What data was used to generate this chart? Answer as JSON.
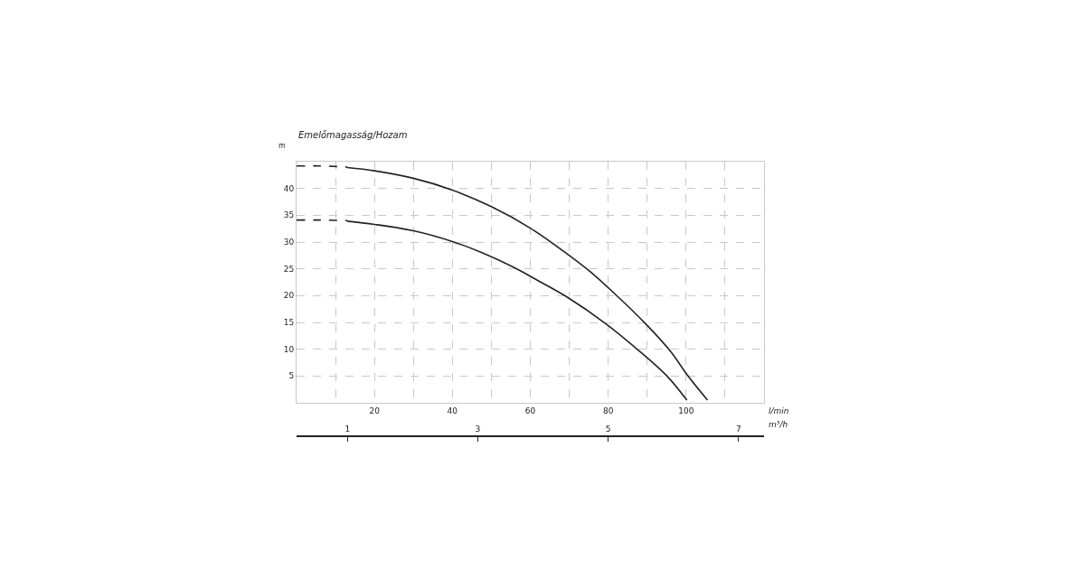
{
  "chart_data": {
    "type": "line",
    "title": "Emelőmagasság/Hozam",
    "ylabel": "m",
    "xlabel": "l/min",
    "x2label": "m³/h",
    "xlim": [
      0,
      120
    ],
    "xticks": [
      {
        "value": 10,
        "label": null
      },
      20,
      {
        "value": 30,
        "label": null
      },
      40,
      {
        "value": 50,
        "label": null
      },
      60,
      {
        "value": 70,
        "label": null
      },
      80,
      {
        "value": 90,
        "label": null
      },
      100,
      {
        "value": 110,
        "label": null
      },
      {
        "value": 120,
        "label": null
      }
    ],
    "ylim": [
      0,
      45
    ],
    "yticks": [
      5,
      10,
      15,
      20,
      25,
      30,
      35,
      40,
      {
        "value": 45,
        "label": null
      }
    ],
    "x2lim": [
      0.22,
      7.39
    ],
    "x2ticks": [
      1,
      3,
      5,
      7
    ],
    "grid": true,
    "marker": "none",
    "series": [
      {
        "color": "#222222",
        "line_style": "dashed",
        "x": [
          0,
          6,
          13
        ],
        "values": [
          44.2,
          44.2,
          44.0
        ]
      },
      {
        "color": "#222222",
        "line_style": "solid",
        "x": [
          13,
          20,
          30,
          40,
          50,
          60,
          70,
          75,
          81.3,
          89.8,
          96,
          100.5,
          105.5
        ],
        "values": [
          43.9,
          43.3,
          41.9,
          39.7,
          36.6,
          32.6,
          27.5,
          24.7,
          20.6,
          14.6,
          9.6,
          5,
          0.5
        ]
      },
      {
        "color": "#222222",
        "line_style": "dashed",
        "x": [
          0,
          6,
          13
        ],
        "values": [
          34.1,
          34.1,
          34.0
        ]
      },
      {
        "color": "#222222",
        "line_style": "solid",
        "x": [
          13,
          20,
          30,
          40,
          48,
          56,
          62,
          69.3,
          79.5,
          88.1,
          95.1,
          100.2
        ],
        "values": [
          33.9,
          33.3,
          32.1,
          30.1,
          27.9,
          25.2,
          22.8,
          19.8,
          14.7,
          9.6,
          5,
          0.5
        ]
      }
    ]
  }
}
